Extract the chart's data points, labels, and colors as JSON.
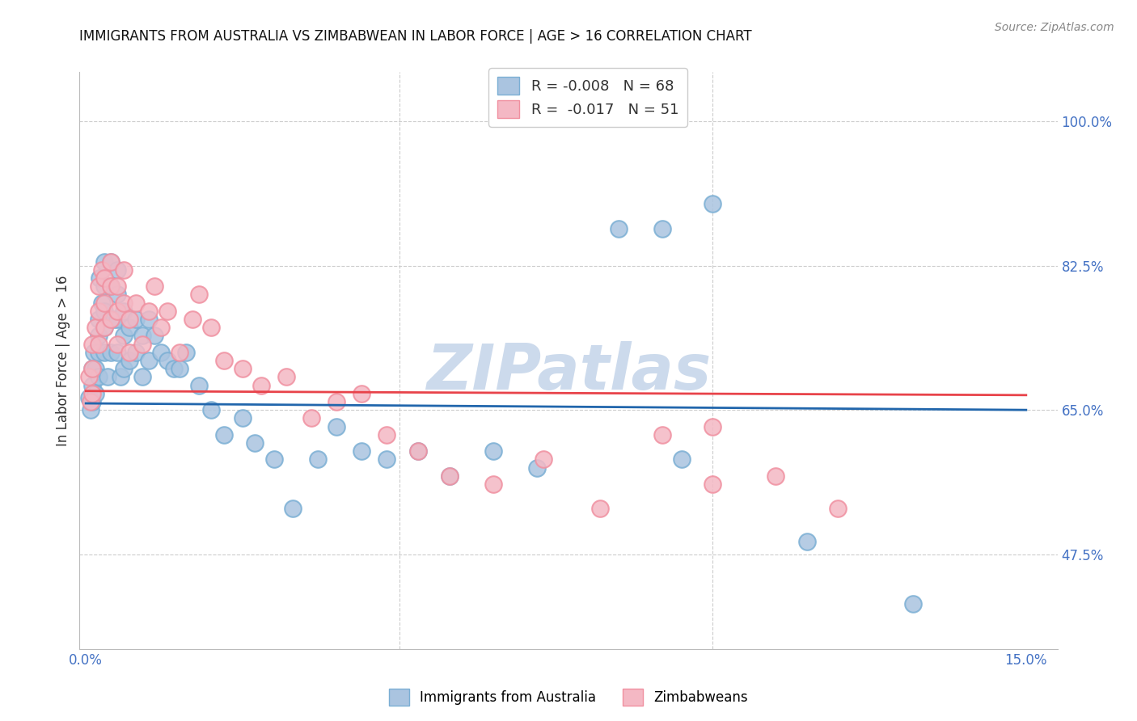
{
  "title": "IMMIGRANTS FROM AUSTRALIA VS ZIMBABWEAN IN LABOR FORCE | AGE > 16 CORRELATION CHART",
  "source": "Source: ZipAtlas.com",
  "ylabel": "In Labor Force | Age > 16",
  "yticks": [
    0.475,
    0.65,
    0.825,
    1.0
  ],
  "ytick_labels": [
    "47.5%",
    "65.0%",
    "82.5%",
    "100.0%"
  ],
  "xmin": -0.001,
  "xmax": 0.155,
  "ymin": 0.36,
  "ymax": 1.06,
  "watermark": "ZIPatlas",
  "blue_R": -0.008,
  "blue_N": 68,
  "pink_R": -0.017,
  "pink_N": 51,
  "blue_scatter_x": [
    0.0005,
    0.0008,
    0.001,
    0.001,
    0.001,
    0.0013,
    0.0015,
    0.0015,
    0.002,
    0.002,
    0.002,
    0.002,
    0.0022,
    0.0025,
    0.003,
    0.003,
    0.003,
    0.003,
    0.003,
    0.0035,
    0.004,
    0.004,
    0.004,
    0.004,
    0.0045,
    0.005,
    0.005,
    0.005,
    0.005,
    0.0055,
    0.006,
    0.006,
    0.006,
    0.007,
    0.007,
    0.008,
    0.008,
    0.009,
    0.009,
    0.01,
    0.01,
    0.011,
    0.012,
    0.013,
    0.014,
    0.015,
    0.016,
    0.018,
    0.02,
    0.022,
    0.025,
    0.027,
    0.03,
    0.033,
    0.037,
    0.04,
    0.044,
    0.048,
    0.053,
    0.058,
    0.065,
    0.072,
    0.085,
    0.092,
    0.095,
    0.1,
    0.115,
    0.132
  ],
  "blue_scatter_y": [
    0.665,
    0.65,
    0.7,
    0.68,
    0.66,
    0.72,
    0.7,
    0.67,
    0.76,
    0.74,
    0.72,
    0.69,
    0.81,
    0.78,
    0.83,
    0.8,
    0.77,
    0.75,
    0.72,
    0.69,
    0.83,
    0.8,
    0.76,
    0.72,
    0.76,
    0.82,
    0.79,
    0.76,
    0.72,
    0.69,
    0.77,
    0.74,
    0.7,
    0.75,
    0.71,
    0.76,
    0.72,
    0.74,
    0.69,
    0.76,
    0.71,
    0.74,
    0.72,
    0.71,
    0.7,
    0.7,
    0.72,
    0.68,
    0.65,
    0.62,
    0.64,
    0.61,
    0.59,
    0.53,
    0.59,
    0.63,
    0.6,
    0.59,
    0.6,
    0.57,
    0.6,
    0.58,
    0.87,
    0.87,
    0.59,
    0.9,
    0.49,
    0.415
  ],
  "pink_scatter_x": [
    0.0005,
    0.0008,
    0.001,
    0.001,
    0.001,
    0.0015,
    0.002,
    0.002,
    0.002,
    0.0025,
    0.003,
    0.003,
    0.003,
    0.004,
    0.004,
    0.004,
    0.005,
    0.005,
    0.005,
    0.006,
    0.006,
    0.007,
    0.007,
    0.008,
    0.009,
    0.01,
    0.011,
    0.012,
    0.013,
    0.015,
    0.017,
    0.018,
    0.02,
    0.022,
    0.025,
    0.028,
    0.032,
    0.036,
    0.04,
    0.044,
    0.048,
    0.053,
    0.058,
    0.065,
    0.073,
    0.082,
    0.092,
    0.1,
    0.11,
    0.12,
    0.1
  ],
  "pink_scatter_y": [
    0.69,
    0.66,
    0.73,
    0.7,
    0.67,
    0.75,
    0.8,
    0.77,
    0.73,
    0.82,
    0.81,
    0.78,
    0.75,
    0.83,
    0.8,
    0.76,
    0.8,
    0.77,
    0.73,
    0.82,
    0.78,
    0.76,
    0.72,
    0.78,
    0.73,
    0.77,
    0.8,
    0.75,
    0.77,
    0.72,
    0.76,
    0.79,
    0.75,
    0.71,
    0.7,
    0.68,
    0.69,
    0.64,
    0.66,
    0.67,
    0.62,
    0.6,
    0.57,
    0.56,
    0.59,
    0.53,
    0.62,
    0.56,
    0.57,
    0.53,
    0.63
  ],
  "blue_color": "#aac4e0",
  "blue_edge_color": "#7bafd4",
  "pink_color": "#f4b8c4",
  "pink_edge_color": "#f090a0",
  "blue_line_color": "#2166ac",
  "pink_line_color": "#e8434a",
  "watermark_color": "#ccdaec",
  "grid_color": "#cccccc",
  "title_color": "#111111",
  "axis_color": "#4472c4",
  "legend_text_color": "#333333"
}
